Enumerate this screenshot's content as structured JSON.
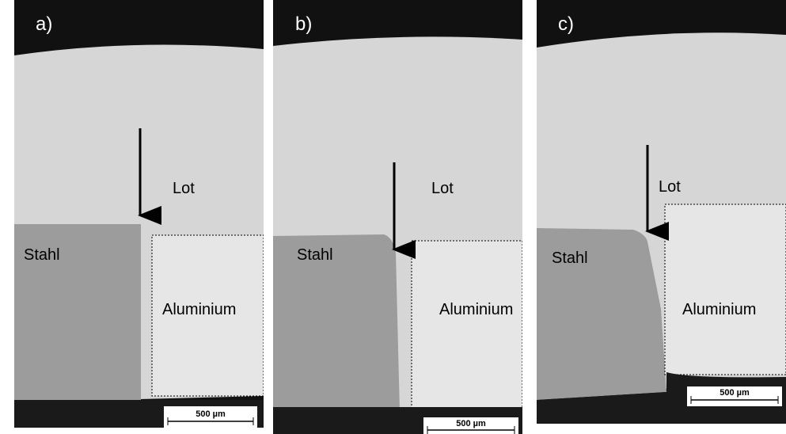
{
  "panels": [
    {
      "label": "a)",
      "solder": "Lot",
      "steel": "Stahl",
      "aluminium": "Aluminium",
      "scale_bar": "500 µm"
    },
    {
      "label": "b)",
      "solder": "Lot",
      "steel": "Stahl",
      "aluminium": "Aluminium",
      "scale_bar": "500 µm"
    },
    {
      "label": "c)",
      "solder": "Lot",
      "steel": "Stahl",
      "aluminium": "Aluminium",
      "scale_bar": "500 µm"
    }
  ]
}
